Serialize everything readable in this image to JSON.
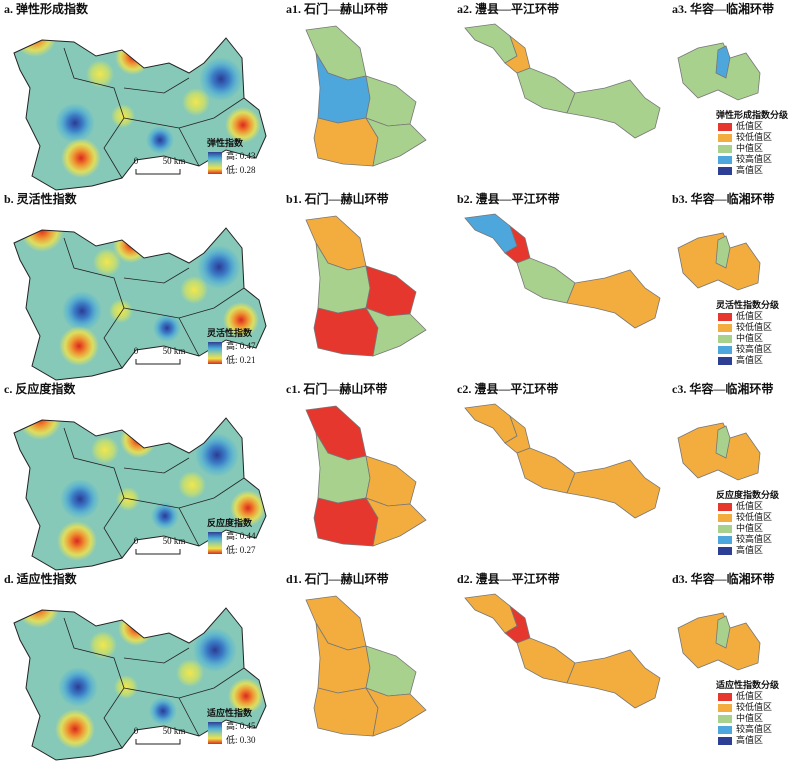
{
  "scale_bar": {
    "zero": "0",
    "length": "50 km"
  },
  "class_labels": [
    "低值区",
    "较低值区",
    "中值区",
    "较高值区",
    "高值区"
  ],
  "class_colors": [
    "#e5372d",
    "#f2ad3e",
    "#a9d18e",
    "#4ea7dc",
    "#2d3f94"
  ],
  "rows": [
    {
      "title": "a. 弹性形成指数",
      "index_legend": {
        "title": "弹性指数",
        "high": "高: 0.43",
        "low": "低: 0.28"
      },
      "panels": [
        "a1. 石门—赫山环带",
        "a2. 澧县—平江环带",
        "a3. 华容—临湘环带"
      ],
      "class_legend_title": "弹性形成指数分级"
    },
    {
      "title": "b. 灵活性指数",
      "index_legend": {
        "title": "灵活性指数",
        "high": "高: 0.47",
        "low": "低: 0.21"
      },
      "panels": [
        "b1. 石门—赫山环带",
        "b2. 澧县—平江环带",
        "b3. 华容—临湘环带"
      ],
      "class_legend_title": "灵活性指数分级"
    },
    {
      "title": "c. 反应度指数",
      "index_legend": {
        "title": "反应度指数",
        "high": "高: 0.44",
        "low": "低: 0.27"
      },
      "panels": [
        "c1. 石门—赫山环带",
        "c2. 澧县—平江环带",
        "c3. 华容—临湘环带"
      ],
      "class_legend_title": "反应度指数分级"
    },
    {
      "title": "d. 适应性指数",
      "index_legend": {
        "title": "适应性指数",
        "high": "高: 0.45",
        "low": "低: 0.30"
      },
      "panels": [
        "d1. 石门—赫山环带",
        "d2. 澧县—平江环带",
        "d3. 华容—临湘环带"
      ],
      "class_legend_title": "适应性指数分级"
    }
  ]
}
